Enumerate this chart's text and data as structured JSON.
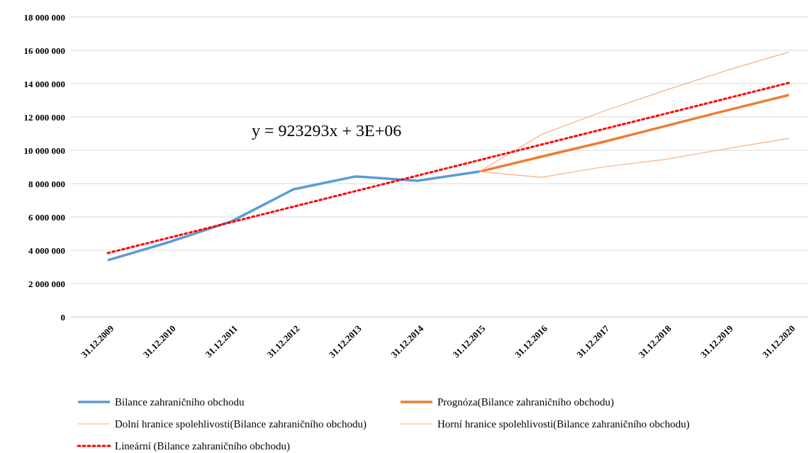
{
  "chart_data": {
    "type": "line",
    "categories": [
      "31.12.2009",
      "31.12.2010",
      "31.12.2011",
      "31.12.2012",
      "31.12.2013",
      "31.12.2014",
      "31.12.2015",
      "31.12.2016",
      "31.12.2017",
      "31.12.2018",
      "31.12.2019",
      "31.12.2020"
    ],
    "series": [
      {
        "name": "Bilance zahraničního obchodu",
        "color": "#5b9bd5",
        "values": [
          3400000,
          4500000,
          5740000,
          7660000,
          8430000,
          8170000,
          8720000,
          null,
          null,
          null,
          null,
          null
        ]
      },
      {
        "name": "Prognóza(Bilance zahraničního obchodu)",
        "color": "#ed7d31",
        "values": [
          null,
          null,
          null,
          null,
          null,
          null,
          8720000,
          9620000,
          10500000,
          11450000,
          12400000,
          13320000
        ]
      },
      {
        "name": "Dolní hranice spolehlivosti(Bilance zahraničního obchodu)",
        "color": "#f4b183",
        "values": [
          null,
          null,
          null,
          null,
          null,
          null,
          8720000,
          8380000,
          9000000,
          9450000,
          10100000,
          10720000
        ]
      },
      {
        "name": "Horní hranice spolehlivosti(Bilance zahraničního obchodu)",
        "color": "#f4b183",
        "values": [
          null,
          null,
          null,
          null,
          null,
          null,
          8720000,
          10940000,
          12340000,
          13600000,
          14800000,
          15900000
        ]
      },
      {
        "name": "Lineární (Bilance zahraničního obchodu)",
        "color": "#ff0000",
        "line_style": "dotted",
        "values": [
          3830000,
          4760000,
          5690000,
          6620000,
          7550000,
          8480000,
          9410000,
          10340000,
          11270000,
          12190000,
          13120000,
          14050000
        ]
      }
    ],
    "ylim": [
      0,
      18000000
    ],
    "yticks": [
      {
        "value": 0,
        "label": "0"
      },
      {
        "value": 2000000,
        "label": "2 000 000"
      },
      {
        "value": 4000000,
        "label": "4 000 000"
      },
      {
        "value": 6000000,
        "label": "6 000 000"
      },
      {
        "value": 8000000,
        "label": "8 000 000"
      },
      {
        "value": 10000000,
        "label": "10 000 000"
      },
      {
        "value": 12000000,
        "label": "12 000 000"
      },
      {
        "value": 14000000,
        "label": "14 000 000"
      },
      {
        "value": 16000000,
        "label": "16 000 000"
      },
      {
        "value": 18000000,
        "label": "18 000 000"
      }
    ],
    "grid": "y",
    "legend": "bottom",
    "marker": "none",
    "annotations": [
      "y = 923293x + 3E+06"
    ]
  }
}
